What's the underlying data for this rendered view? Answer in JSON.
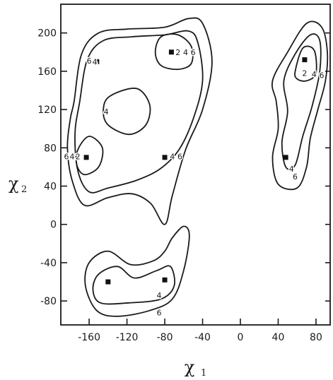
{
  "chart_data": {
    "type": "contour",
    "xlabel": "χ",
    "xlabel_sub": "1",
    "ylabel": "χ",
    "ylabel_sub": "2",
    "xlim": [
      -190,
      95
    ],
    "ylim": [
      -105,
      230
    ],
    "xticks": [
      -160,
      -120,
      -80,
      -40,
      0,
      40,
      80
    ],
    "yticks": [
      -80,
      -40,
      0,
      40,
      80,
      120,
      160,
      200
    ],
    "grid": false,
    "minima": [
      {
        "x": -152,
        "y": 170
      },
      {
        "x": -73,
        "y": 180
      },
      {
        "x": -163,
        "y": 70
      },
      {
        "x": -80,
        "y": 70
      },
      {
        "x": 68,
        "y": 172
      },
      {
        "x": 48,
        "y": 70
      },
      {
        "x": -140,
        "y": -60
      },
      {
        "x": -80,
        "y": -58
      }
    ],
    "contours": [
      {
        "level": "6",
        "points": [
          [
            -176,
            128
          ],
          [
            -168,
            178
          ],
          [
            -150,
            200
          ],
          [
            -120,
            204
          ],
          [
            -80,
            206
          ],
          [
            -55,
            215
          ],
          [
            -40,
            210
          ],
          [
            -30,
            170
          ],
          [
            -40,
            120
          ],
          [
            -58,
            78
          ],
          [
            -72,
            30
          ],
          [
            -80,
            0
          ],
          [
            -95,
            22
          ],
          [
            -115,
            32
          ],
          [
            -140,
            28
          ],
          [
            -165,
            20
          ],
          [
            -178,
            46
          ],
          [
            -183,
            80
          ],
          [
            -180,
            110
          ]
        ]
      },
      {
        "level": "4",
        "points": [
          [
            -170,
            128
          ],
          [
            -162,
            172
          ],
          [
            -145,
            192
          ],
          [
            -115,
            196
          ],
          [
            -80,
            198
          ],
          [
            -55,
            202
          ],
          [
            -45,
            190
          ],
          [
            -40,
            150
          ],
          [
            -50,
            110
          ],
          [
            -65,
            78
          ],
          [
            -85,
            58
          ],
          [
            -110,
            46
          ],
          [
            -140,
            38
          ],
          [
            -160,
            34
          ],
          [
            -172,
            56
          ],
          [
            -175,
            95
          ]
        ]
      },
      {
        "level": "2",
        "points": [
          [
            -84,
            196
          ],
          [
            -66,
            198
          ],
          [
            -52,
            186
          ],
          [
            -52,
            168
          ],
          [
            -66,
            162
          ],
          [
            -84,
            166
          ],
          [
            -90,
            180
          ]
        ]
      },
      {
        "level": "4",
        "points": [
          [
            -138,
            134
          ],
          [
            -110,
            142
          ],
          [
            -96,
            125
          ],
          [
            -100,
            104
          ],
          [
            -118,
            94
          ],
          [
            -140,
            104
          ],
          [
            -145,
            120
          ]
        ]
      },
      {
        "level": "2",
        "points": [
          [
            -172,
            78
          ],
          [
            -160,
            92
          ],
          [
            -146,
            80
          ],
          [
            -150,
            60
          ],
          [
            -165,
            52
          ],
          [
            -173,
            62
          ]
        ]
      },
      {
        "level": "6",
        "points": [
          [
            34,
            150
          ],
          [
            50,
            180
          ],
          [
            70,
            210
          ],
          [
            86,
            206
          ],
          [
            92,
            180
          ],
          [
            90,
            150
          ],
          [
            82,
            120
          ],
          [
            74,
            90
          ],
          [
            70,
            60
          ],
          [
            60,
            38
          ],
          [
            40,
            42
          ],
          [
            34,
            70
          ],
          [
            40,
            100
          ],
          [
            38,
            128
          ]
        ]
      },
      {
        "level": "4",
        "points": [
          [
            46,
            150
          ],
          [
            58,
            178
          ],
          [
            74,
            198
          ],
          [
            84,
            192
          ],
          [
            84,
            160
          ],
          [
            76,
            124
          ],
          [
            66,
            92
          ],
          [
            58,
            62
          ],
          [
            48,
            60
          ],
          [
            44,
            86
          ],
          [
            50,
            118
          ]
        ]
      },
      {
        "level": "2",
        "points": [
          [
            58,
            160
          ],
          [
            66,
            184
          ],
          [
            78,
            182
          ],
          [
            80,
            158
          ],
          [
            70,
            150
          ],
          [
            60,
            152
          ]
        ]
      },
      {
        "level": "6",
        "points": [
          [
            -160,
            -40
          ],
          [
            -140,
            -28
          ],
          [
            -116,
            -42
          ],
          [
            -92,
            -38
          ],
          [
            -80,
            -28
          ],
          [
            -72,
            -14
          ],
          [
            -60,
            -2
          ],
          [
            -54,
            -12
          ],
          [
            -60,
            -48
          ],
          [
            -72,
            -78
          ],
          [
            -96,
            -90
          ],
          [
            -130,
            -96
          ],
          [
            -152,
            -90
          ],
          [
            -164,
            -64
          ]
        ]
      },
      {
        "level": "4",
        "points": [
          [
            -150,
            -52
          ],
          [
            -130,
            -44
          ],
          [
            -112,
            -56
          ],
          [
            -88,
            -48
          ],
          [
            -74,
            -44
          ],
          [
            -70,
            -64
          ],
          [
            -84,
            -78
          ],
          [
            -118,
            -82
          ],
          [
            -148,
            -82
          ],
          [
            -156,
            -68
          ]
        ]
      }
    ],
    "contour_labels": [
      {
        "text": "6",
        "x": -160,
        "y": 171
      },
      {
        "text": "4",
        "x": -154,
        "y": 170
      },
      {
        "text": "2",
        "x": -66,
        "y": 180
      },
      {
        "text": "4",
        "x": -58,
        "y": 180
      },
      {
        "text": "6",
        "x": -50,
        "y": 180
      },
      {
        "text": "4",
        "x": -142,
        "y": 118
      },
      {
        "text": "6",
        "x": -184,
        "y": 71
      },
      {
        "text": "4",
        "x": -178,
        "y": 71
      },
      {
        "text": "2",
        "x": -172,
        "y": 71
      },
      {
        "text": "4",
        "x": -72,
        "y": 71
      },
      {
        "text": "6",
        "x": -64,
        "y": 71
      },
      {
        "text": "2",
        "x": 68,
        "y": 158
      },
      {
        "text": "4",
        "x": 78,
        "y": 157
      },
      {
        "text": "6",
        "x": 86,
        "y": 156
      },
      {
        "text": "4",
        "x": 54,
        "y": 58
      },
      {
        "text": "6",
        "x": 58,
        "y": 50
      },
      {
        "text": "4",
        "x": -86,
        "y": -74
      },
      {
        "text": "6",
        "x": -86,
        "y": -92
      }
    ]
  }
}
